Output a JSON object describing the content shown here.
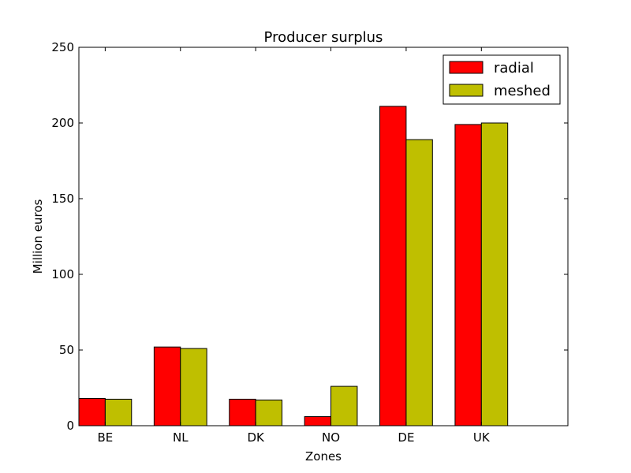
{
  "chart_data": {
    "type": "bar",
    "title": "Producer surplus",
    "xlabel": "Zones",
    "ylabel": "Million euros",
    "categories": [
      "BE",
      "NL",
      "DK",
      "NO",
      "DE",
      "UK"
    ],
    "series": [
      {
        "name": "radial",
        "color": "#ff0000",
        "values": [
          18,
          52,
          17.5,
          6,
          211,
          199
        ]
      },
      {
        "name": "meshed",
        "color": "#bfbf00",
        "values": [
          17.5,
          51,
          17,
          26,
          189,
          200
        ]
      }
    ],
    "ylim": [
      0,
      250
    ],
    "yticks": [
      0,
      50,
      100,
      150,
      200,
      250
    ],
    "grid": false,
    "legend_position": "top-right"
  }
}
